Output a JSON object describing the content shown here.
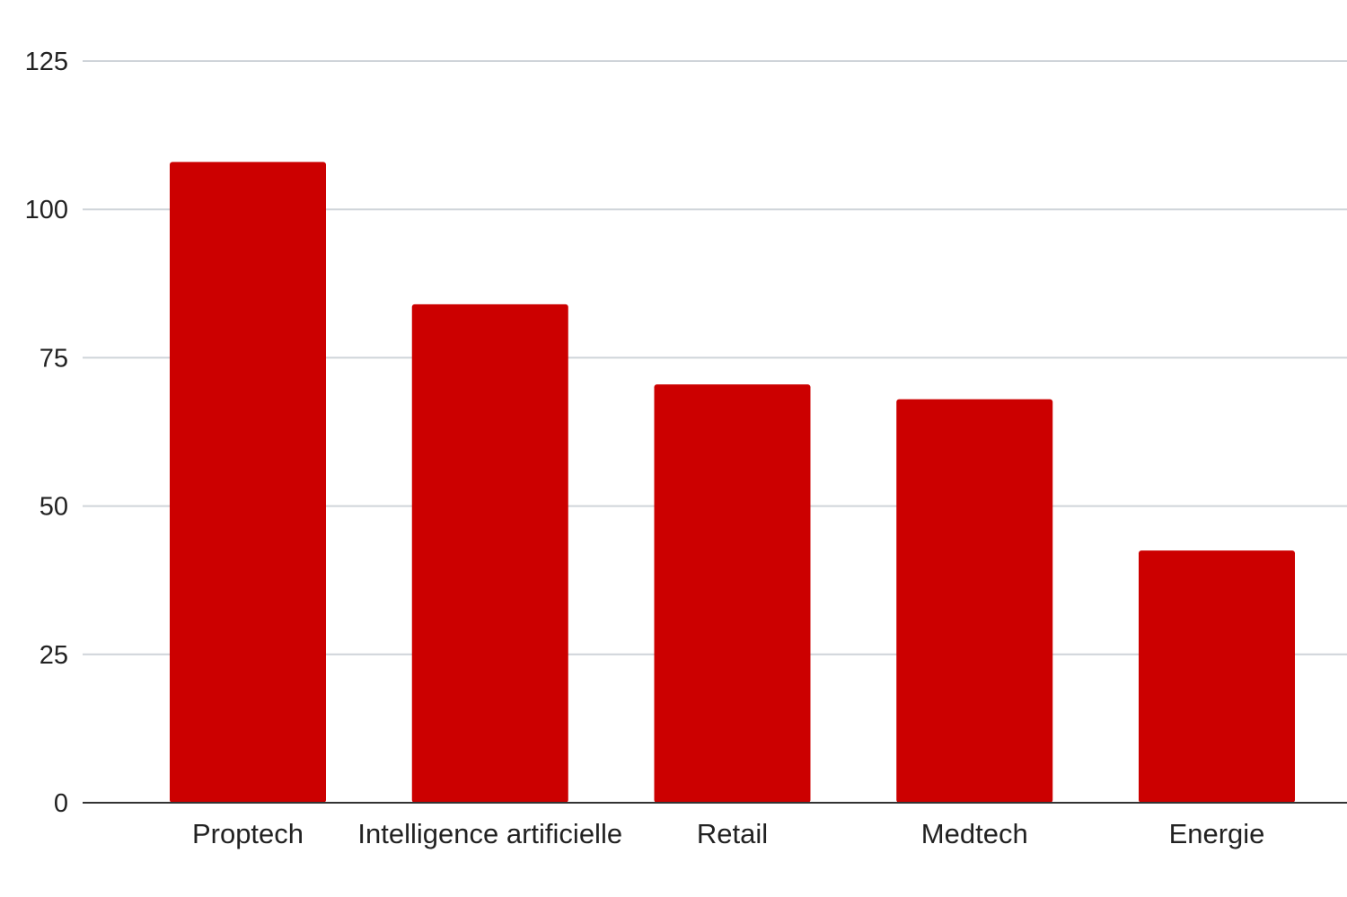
{
  "chart_data": {
    "type": "bar",
    "title": "",
    "xlabel": "",
    "ylabel": "",
    "categories": [
      "Proptech",
      "Intelligence artificielle",
      "Retail",
      "Medtech",
      "Energie"
    ],
    "series": [
      {
        "values": [
          108,
          84,
          70.5,
          68,
          42.5
        ]
      }
    ],
    "ylim": [
      0,
      125
    ],
    "yticks": [
      0,
      25,
      50,
      75,
      100,
      125
    ],
    "grid": true,
    "legend": "none",
    "bar_color": "#cc0000"
  }
}
